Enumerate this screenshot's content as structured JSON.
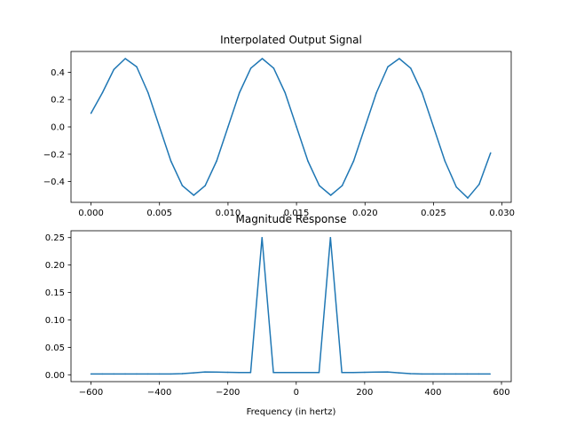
{
  "chart_data": [
    {
      "type": "line",
      "title": "Interpolated Output Signal",
      "xlabel": "",
      "ylabel": "",
      "xlim": [
        -0.00146,
        0.03067
      ],
      "ylim": [
        -0.552,
        0.552
      ],
      "xticks": [
        0.0,
        0.005,
        0.01,
        0.015,
        0.02,
        0.025,
        0.03
      ],
      "xtick_labels": [
        "0.000",
        "0.005",
        "0.010",
        "0.015",
        "0.020",
        "0.025",
        "0.030"
      ],
      "yticks": [
        -0.4,
        -0.2,
        0.0,
        0.2,
        0.4
      ],
      "ytick_labels": [
        "−0.4",
        "−0.2",
        "0.0",
        "0.2",
        "0.4"
      ],
      "grid": false,
      "color": "#1f77b4",
      "series": [
        {
          "x": [
            0.0,
            0.000833,
            0.001667,
            0.0025,
            0.003333,
            0.004167,
            0.005,
            0.005833,
            0.006667,
            0.0075,
            0.008333,
            0.009167,
            0.01,
            0.010833,
            0.011667,
            0.0125,
            0.013333,
            0.014167,
            0.015,
            0.015833,
            0.016667,
            0.0175,
            0.018333,
            0.019167,
            0.02,
            0.020833,
            0.021667,
            0.0225,
            0.023333,
            0.024167,
            0.025,
            0.025833,
            0.026667,
            0.0275,
            0.028333,
            0.029167
          ],
          "values": [
            0.1,
            0.25,
            0.42,
            0.5,
            0.44,
            0.25,
            0.0,
            -0.25,
            -0.43,
            -0.5,
            -0.43,
            -0.25,
            0.0,
            0.25,
            0.43,
            0.5,
            0.43,
            0.25,
            0.0,
            -0.25,
            -0.43,
            -0.5,
            -0.43,
            -0.25,
            0.0,
            0.25,
            0.44,
            0.5,
            0.43,
            0.25,
            0.0,
            -0.25,
            -0.44,
            -0.52,
            -0.42,
            -0.19
          ]
        }
      ]
    },
    {
      "type": "line",
      "title": "Magnitude Response",
      "xlabel": "Frequency (in hertz)",
      "ylabel": "",
      "xlim": [
        -658.4,
        628.4
      ],
      "ylim": [
        -0.0125,
        0.2625
      ],
      "xticks": [
        -600,
        -400,
        -200,
        0,
        200,
        400,
        600
      ],
      "xtick_labels": [
        "−600",
        "−400",
        "−200",
        "0",
        "200",
        "400",
        "600"
      ],
      "yticks": [
        0.0,
        0.05,
        0.1,
        0.15,
        0.2,
        0.25
      ],
      "ytick_labels": [
        "0.00",
        "0.05",
        "0.10",
        "0.15",
        "0.20",
        "0.25"
      ],
      "grid": false,
      "color": "#1f77b4",
      "series": [
        {
          "x": [
            -600,
            -566.67,
            -533.33,
            -500,
            -466.67,
            -433.33,
            -400,
            -366.67,
            -333.33,
            -300,
            -266.67,
            -233.33,
            -200,
            -166.67,
            -133.33,
            -100,
            -66.67,
            -33.33,
            0,
            33.33,
            66.67,
            100,
            133.33,
            166.67,
            200,
            233.33,
            266.67,
            300,
            333.33,
            366.67,
            400,
            433.33,
            466.67,
            500,
            533.33,
            566.67
          ],
          "values": [
            0.0015,
            0.0015,
            0.0015,
            0.0015,
            0.0015,
            0.0015,
            0.0015,
            0.0015,
            0.002,
            0.0035,
            0.005,
            0.0048,
            0.0045,
            0.004,
            0.004,
            0.25,
            0.004,
            0.004,
            0.004,
            0.004,
            0.004,
            0.25,
            0.004,
            0.004,
            0.0045,
            0.0048,
            0.005,
            0.0035,
            0.002,
            0.0015,
            0.0015,
            0.0015,
            0.0015,
            0.0015,
            0.0015,
            0.0015
          ]
        }
      ]
    }
  ]
}
